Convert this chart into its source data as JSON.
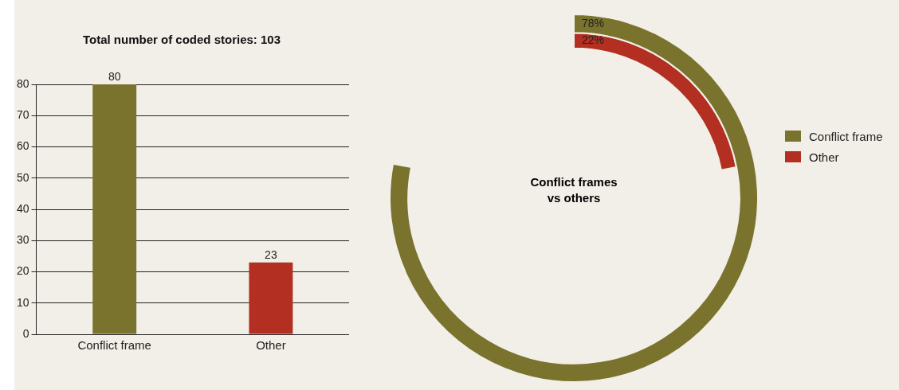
{
  "chart_data": [
    {
      "type": "bar",
      "title": "Total number of coded stories: 103",
      "categories": [
        "Conflict frame",
        "Other"
      ],
      "values": [
        80,
        23
      ],
      "colors": [
        "#7a732e",
        "#b22f22"
      ],
      "ylim": [
        0,
        80
      ],
      "yticks": [
        0,
        10,
        20,
        30,
        40,
        50,
        60,
        70,
        80
      ],
      "grid": "y",
      "data_labels": true,
      "legend": false
    },
    {
      "type": "donut",
      "title": "Conflict frames vs others",
      "categories": [
        "Conflict frame",
        "Other"
      ],
      "values": [
        78,
        22
      ],
      "colors": [
        "#7a732e",
        "#b22f22"
      ],
      "value_labels": [
        "78%",
        "22%"
      ],
      "legend": "right"
    }
  ]
}
